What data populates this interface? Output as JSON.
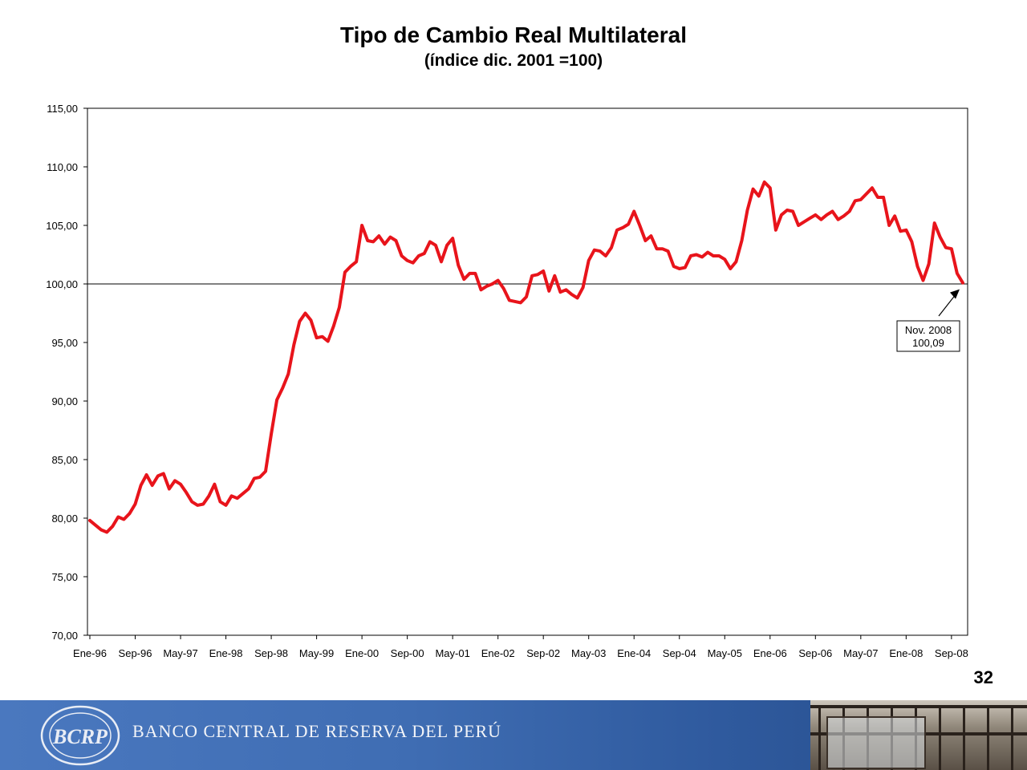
{
  "page": {
    "number": "32"
  },
  "footer": {
    "bank_name": "BANCO CENTRAL DE RESERVA DEL PERÚ",
    "logo_text": "BCRP"
  },
  "chart_data": {
    "type": "line",
    "title": "Tipo de Cambio Real Multilateral",
    "subtitle": "(índice dic. 2001 =100)",
    "xlabel": "",
    "ylabel": "",
    "ylim": [
      70,
      115
    ],
    "y_ticks": [
      "70,00",
      "75,00",
      "80,00",
      "85,00",
      "90,00",
      "95,00",
      "100,00",
      "105,00",
      "110,00",
      "115,00"
    ],
    "x_tick_labels": [
      "Ene-96",
      "Sep-96",
      "May-97",
      "Ene-98",
      "Sep-98",
      "May-99",
      "Ene-00",
      "Sep-00",
      "May-01",
      "Ene-02",
      "Sep-02",
      "May-03",
      "Ene-04",
      "Sep-04",
      "May-05",
      "Ene-06",
      "Sep-06",
      "May-07",
      "Ene-08",
      "Sep-08"
    ],
    "x_start": "Ene-96",
    "x_end": "Nov-08",
    "reference_line": 100,
    "grid": false,
    "line_color": "#e8141b",
    "annotation": {
      "line1": "Nov. 2008",
      "line2": "100,09"
    },
    "series": [
      {
        "values": [
          79.8,
          79.4,
          79.0,
          78.8,
          79.3,
          80.1,
          79.9,
          80.4,
          81.2,
          82.8,
          83.7,
          82.8,
          83.6,
          83.8,
          82.5,
          83.2,
          82.9,
          82.2,
          81.4,
          81.1,
          81.2,
          81.9,
          82.9,
          81.4,
          81.1,
          81.9,
          81.7,
          82.1,
          82.5,
          83.4,
          83.5,
          84.0,
          87.2,
          90.1,
          91.1,
          92.3,
          94.8,
          96.8,
          97.5,
          96.9,
          95.4,
          95.5,
          95.1,
          96.4,
          98.0,
          101.0,
          101.5,
          101.9,
          105.0,
          103.7,
          103.6,
          104.1,
          103.4,
          104.0,
          103.7,
          102.4,
          102.0,
          101.8,
          102.4,
          102.6,
          103.6,
          103.3,
          101.9,
          103.3,
          103.9,
          101.6,
          100.4,
          100.9,
          100.9,
          99.5,
          99.8,
          100.0,
          100.3,
          99.6,
          98.6,
          98.5,
          98.4,
          98.9,
          100.7,
          100.8,
          101.1,
          99.4,
          100.7,
          99.3,
          99.5,
          99.1,
          98.8,
          99.7,
          102.0,
          102.9,
          102.8,
          102.4,
          103.1,
          104.6,
          104.8,
          105.1,
          106.2,
          105.0,
          103.7,
          104.1,
          103.0,
          103.0,
          102.8,
          101.5,
          101.3,
          101.4,
          102.4,
          102.5,
          102.3,
          102.7,
          102.4,
          102.4,
          102.1,
          101.3,
          101.9,
          103.7,
          106.3,
          108.1,
          107.5,
          108.7,
          108.2,
          104.6,
          105.9,
          106.3,
          106.2,
          105.0,
          105.3,
          105.6,
          105.9,
          105.5,
          105.9,
          106.2,
          105.5,
          105.8,
          106.2,
          107.1,
          107.2,
          107.7,
          108.2,
          107.4,
          107.4,
          105.0,
          105.8,
          104.5,
          104.6,
          103.6,
          101.5,
          100.3,
          101.7,
          105.2,
          104.0,
          103.1,
          103.0,
          100.9,
          100.09
        ]
      }
    ]
  }
}
